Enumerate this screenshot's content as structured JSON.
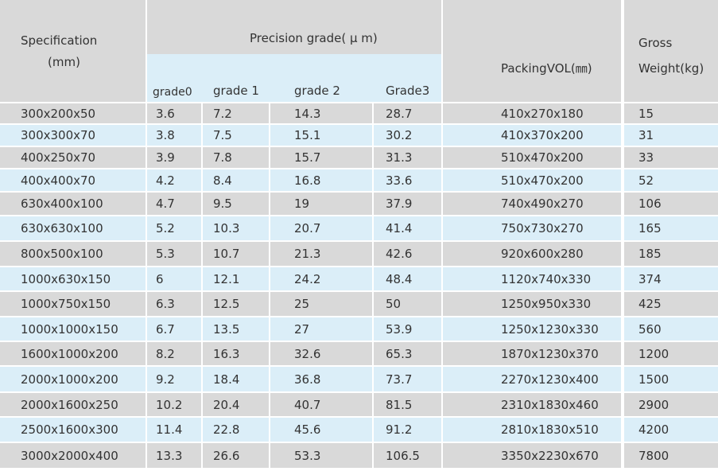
{
  "table": {
    "header": {
      "specification": [
        "Specification",
        "(mm)"
      ],
      "precision": "Precision grade( μ m)",
      "grades": [
        "grade0",
        "grade 1",
        "grade 2",
        "Grade3"
      ],
      "packing": "PackingVOL(㎜)",
      "gross": [
        "Gross",
        "Weight(kg)"
      ]
    },
    "rows": [
      [
        "300x200x50",
        "3.6",
        "7.2",
        "14.3",
        "28.7",
        "410x270x180",
        "15"
      ],
      [
        "300x300x70",
        "3.8",
        "7.5",
        "15.1",
        "30.2",
        "410x370x200",
        "31"
      ],
      [
        "400x250x70",
        "3.9",
        "7.8",
        "15.7",
        "31.3",
        "510x470x200",
        "33"
      ],
      [
        "400x400x70",
        "4.2",
        "8.4",
        "16.8",
        "33.6",
        "510x470x200",
        "52"
      ],
      [
        "630x400x100",
        "4.7",
        "9.5",
        "19",
        "37.9",
        "740x490x270",
        "106"
      ],
      [
        "630x630x100",
        "5.2",
        "10.3",
        "20.7",
        "41.4",
        "750x730x270",
        "165"
      ],
      [
        "800x500x100",
        "5.3",
        "10.7",
        "21.3",
        "42.6",
        "920x600x280",
        "185"
      ],
      [
        "1000x630x150",
        "6",
        "12.1",
        "24.2",
        "48.4",
        "1120x740x330",
        "374"
      ],
      [
        "1000x750x150",
        "6.3",
        "12.5",
        "25",
        "50",
        "1250x950x330",
        "425"
      ],
      [
        "1000x1000x150",
        "6.7",
        "13.5",
        "27",
        "53.9",
        "1250x1230x330",
        "560"
      ],
      [
        "1600x1000x200",
        "8.2",
        "16.3",
        "32.6",
        "65.3",
        "1870x1230x370",
        "1200"
      ],
      [
        "2000x1000x200",
        "9.2",
        "18.4",
        "36.8",
        "73.7",
        "2270x1230x400",
        "1500"
      ],
      [
        "2000x1600x250",
        "10.2",
        "20.4",
        "40.7",
        "81.5",
        "2310x1830x460",
        "2900"
      ],
      [
        "2500x1600x300",
        "11.4",
        "22.8",
        "45.6",
        "91.2",
        "2810x1830x510",
        "4200"
      ],
      [
        "3000x2000x400",
        "13.3",
        "26.6",
        "53.3",
        "106.5",
        "3350x2230x670",
        "7800"
      ]
    ]
  }
}
